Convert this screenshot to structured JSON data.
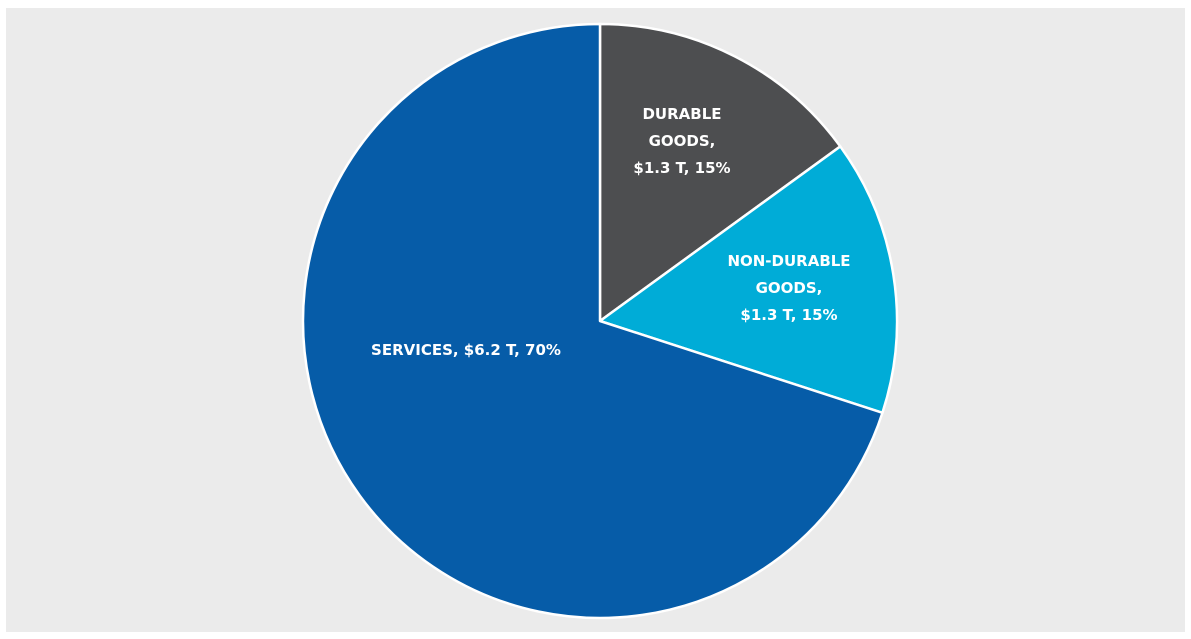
{
  "chart_data": {
    "type": "pie",
    "title": "",
    "start_angle_deg": 0,
    "direction": "clockwise",
    "slices": [
      {
        "name": "DURABLE GOODS",
        "value": 1.3,
        "percent": 15,
        "color": "#4d4e50",
        "label_lines": [
          "DURABLE",
          "GOODS,",
          "$1.3 T, 15%"
        ]
      },
      {
        "name": "NON-DURABLE GOODS",
        "value": 1.3,
        "percent": 15,
        "color": "#00acd7",
        "label_lines": [
          "NON-DURABLE",
          "GOODS,",
          "$1.3 T, 15%"
        ]
      },
      {
        "name": "SERVICES",
        "value": 6.2,
        "percent": 70,
        "color": "#065ca8",
        "label_lines": [
          "SERVICES, $6.2 T, 70%"
        ]
      }
    ]
  }
}
